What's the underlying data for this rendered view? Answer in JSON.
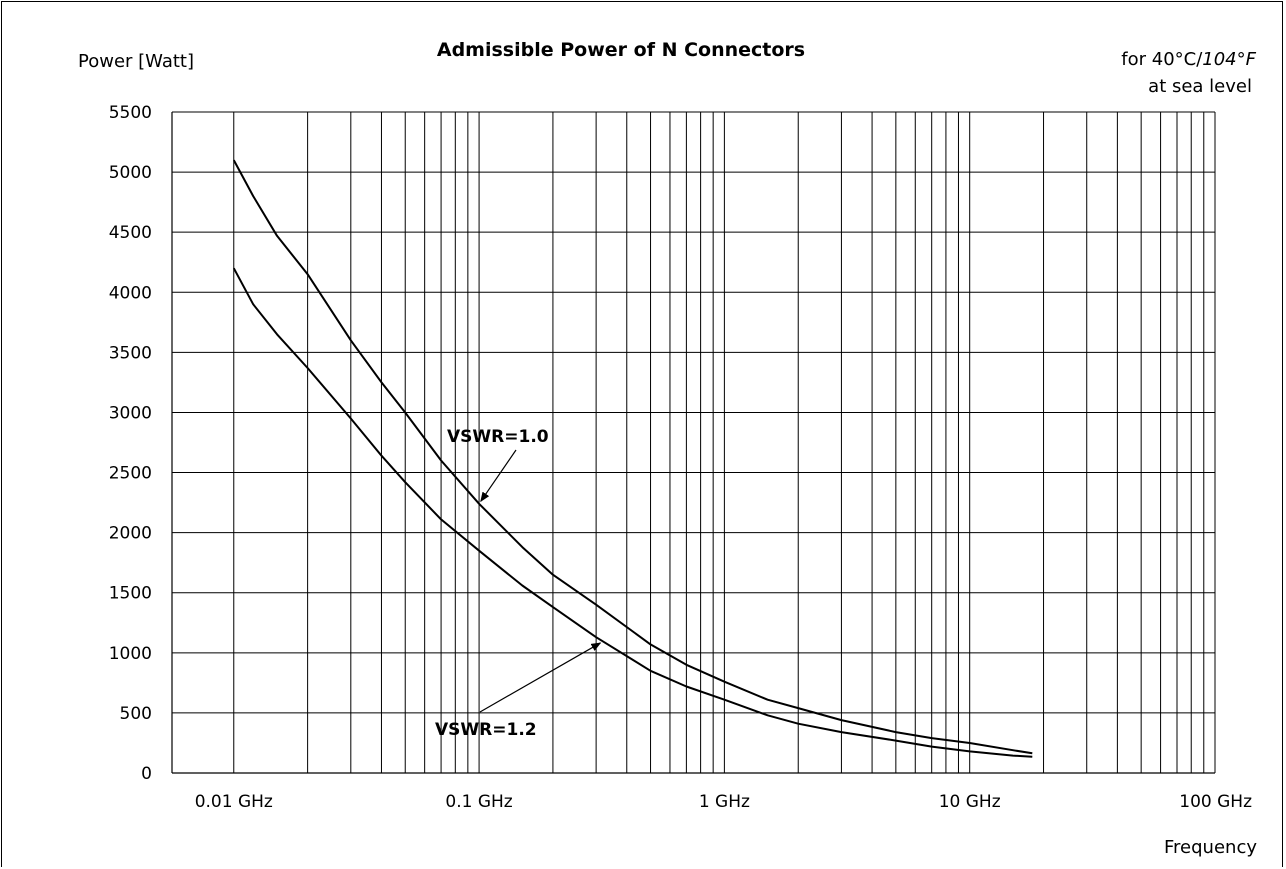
{
  "chart_data": {
    "type": "line",
    "title": "Admissible Power of N Connectors",
    "ylabel": "Power [Watt]",
    "xlabel": "Frequency",
    "condition_line1_prefix": "for 40°C/",
    "condition_line1_italic": "104°F",
    "condition_line2": "at sea level",
    "x_scale": "log",
    "xlim": [
      0.0056,
      100
    ],
    "ylim": [
      0,
      5500
    ],
    "grid": true,
    "x_ticks": [
      {
        "value": 0.01,
        "label": "0.01 GHz"
      },
      {
        "value": 0.1,
        "label": "0.1 GHz"
      },
      {
        "value": 1,
        "label": "1 GHz"
      },
      {
        "value": 10,
        "label": "10 GHz"
      },
      {
        "value": 100,
        "label": "100 GHz"
      }
    ],
    "y_ticks": [
      0,
      500,
      1000,
      1500,
      2000,
      2500,
      3000,
      3500,
      4000,
      4500,
      5000,
      5500
    ],
    "series": [
      {
        "name": "VSWR=1.0",
        "x": [
          0.01,
          0.012,
          0.015,
          0.02,
          0.03,
          0.04,
          0.05,
          0.07,
          0.1,
          0.15,
          0.2,
          0.3,
          0.5,
          0.7,
          1,
          1.5,
          2,
          3,
          5,
          7,
          10,
          15,
          18
        ],
        "y": [
          5100,
          4800,
          4470,
          4150,
          3600,
          3250,
          3000,
          2600,
          2240,
          1880,
          1650,
          1400,
          1070,
          900,
          760,
          610,
          540,
          440,
          340,
          290,
          250,
          190,
          165
        ]
      },
      {
        "name": "VSWR=1.2",
        "x": [
          0.01,
          0.012,
          0.015,
          0.02,
          0.03,
          0.04,
          0.05,
          0.07,
          0.1,
          0.15,
          0.2,
          0.3,
          0.5,
          0.7,
          1,
          1.5,
          2,
          3,
          5,
          7,
          10,
          15,
          18
        ],
        "y": [
          4200,
          3900,
          3650,
          3370,
          2950,
          2640,
          2420,
          2110,
          1850,
          1560,
          1380,
          1130,
          850,
          720,
          610,
          480,
          410,
          340,
          270,
          220,
          180,
          145,
          135
        ]
      }
    ],
    "annotations": [
      {
        "text": "VSWR=1.0",
        "series": "VSWR=1.0",
        "at_x": 0.1
      },
      {
        "text": "VSWR=1.2",
        "series": "VSWR=1.2",
        "at_x": 0.32
      }
    ]
  }
}
